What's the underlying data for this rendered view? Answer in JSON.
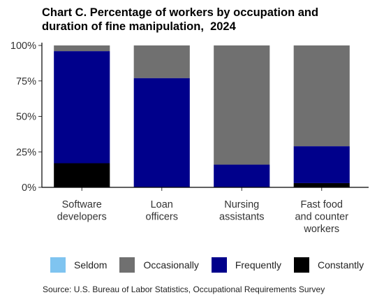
{
  "chart_data": {
    "type": "bar",
    "stacked": true,
    "title": [
      "Chart C. Percentage of workers by occupation and",
      "duration of fine manipulation,  2024"
    ],
    "categories": [
      [
        "Software",
        "developers"
      ],
      [
        "Loan",
        "officers"
      ],
      [
        "Nursing",
        "assistants"
      ],
      [
        "Fast food",
        "and counter",
        "workers"
      ]
    ],
    "series": [
      {
        "name": "Seldom",
        "color": "#7fc4f0",
        "values": [
          0,
          0,
          0,
          0
        ]
      },
      {
        "name": "Occasionally",
        "color": "#707070",
        "values": [
          4,
          23,
          84,
          71
        ]
      },
      {
        "name": "Frequently",
        "color": "#00008b",
        "values": [
          79,
          77,
          16,
          26
        ]
      },
      {
        "name": "Constantly",
        "color": "#000000",
        "values": [
          17,
          0,
          0,
          3
        ]
      }
    ],
    "stack_order_bottom_to_top": [
      "Constantly",
      "Frequently",
      "Occasionally",
      "Seldom"
    ],
    "yticks": [
      "0%",
      "25%",
      "50%",
      "75%",
      "100%"
    ],
    "ytick_values": [
      0,
      25,
      50,
      75,
      100
    ],
    "ylim": [
      0,
      100
    ],
    "xlabel": "",
    "ylabel": "",
    "grid": false,
    "legend_position": "bottom",
    "source": "Source: U.S. Bureau of Labor Statistics, Occupational Requirements Survey"
  }
}
